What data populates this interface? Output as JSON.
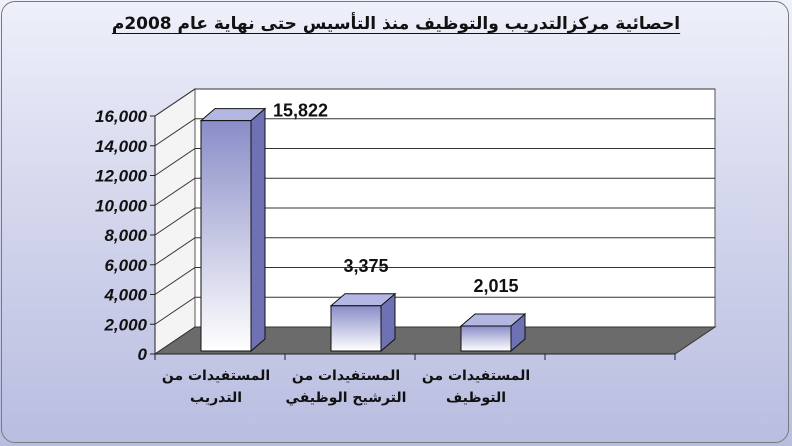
{
  "chart_data": {
    "type": "bar",
    "title": "احصائية مركزالتدريب والتوظيف منذ التأسيس حتى نهاية عام 2008م",
    "categories": [
      [
        "المستفيدات من",
        "التدريب"
      ],
      [
        "المستفيدات من",
        "الترشيح الوظيفي"
      ],
      [
        "المستفيدات من",
        "التوظيف"
      ]
    ],
    "values": [
      15822,
      3375,
      2015
    ],
    "data_labels": [
      "15,822",
      "3,375",
      "2,015"
    ],
    "ylim": [
      0,
      16000
    ],
    "yticks": [
      "0",
      "2,000",
      "4,000",
      "6,000",
      "8,000",
      "10,000",
      "12,000",
      "14,000",
      "16,000"
    ],
    "grid": true,
    "legend": "none",
    "colors": {
      "bar_top": "#8a8dc8",
      "bar_bottom": "#ffffff",
      "bar_side": "#6e72b4",
      "bar_top_face": "#b4b7e2",
      "floor": "#6b6b6b",
      "wall": "#ffffff"
    }
  }
}
